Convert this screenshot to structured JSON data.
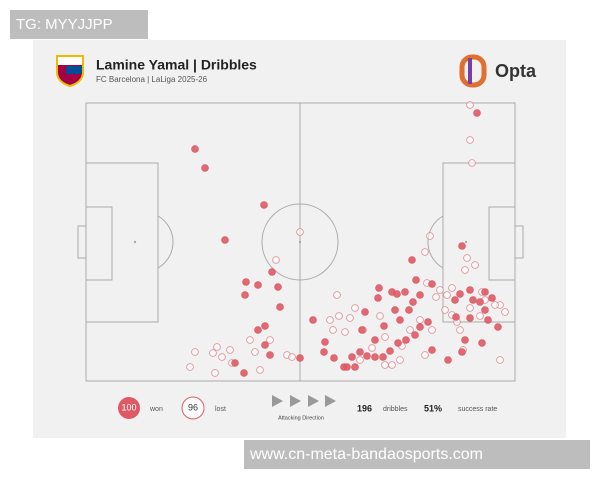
{
  "watermark_top": "TG: MYYJJPP",
  "header": {
    "title": "Lamine Yamal | Dribbles",
    "subtitle": "FC Barcelona | LaLiga 2025-26",
    "brand": "Opta"
  },
  "legend": {
    "won_count": "100",
    "won_label": "won",
    "lost_count": "96",
    "lost_label": "lost",
    "direction": "Attacking Direction",
    "total": "196",
    "total_label": "dribbles",
    "rate": "51%",
    "rate_label": "success rate"
  },
  "watermark_bottom": "www.cn-meta-bandaosports.com"
}
